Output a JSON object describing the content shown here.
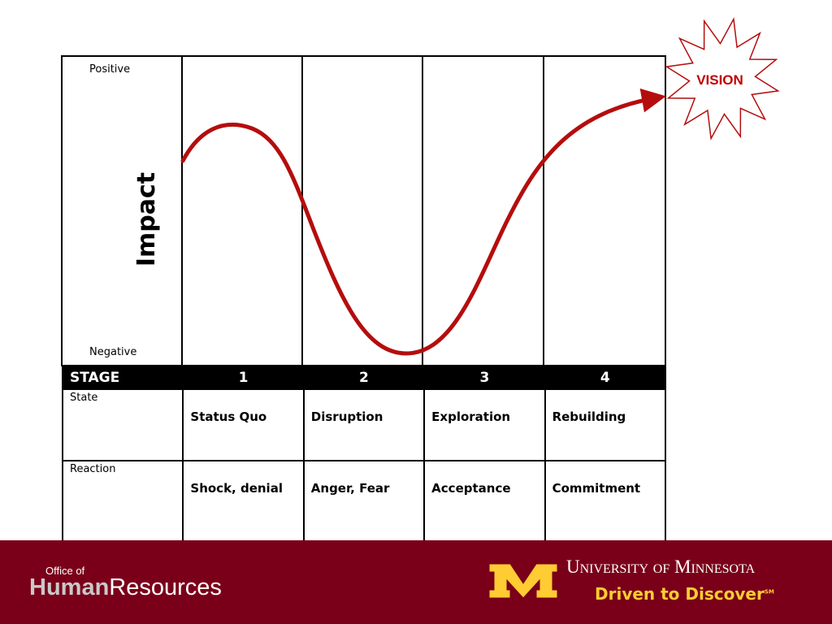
{
  "diagram": {
    "axis": {
      "top": "Positive",
      "bottom": "Negative",
      "label": "Impact"
    },
    "vision": "VISION",
    "table": {
      "header": [
        "STAGE",
        "1",
        "2",
        "3",
        "4"
      ],
      "rows": [
        [
          "State",
          "Status Quo",
          "Disruption",
          "Exploration",
          "Rebuilding"
        ],
        [
          "Reaction",
          "Shock, denial",
          "Anger, Fear",
          "Acceptance",
          "Commitment"
        ]
      ]
    }
  },
  "footer": {
    "office": "Office of",
    "human": "Human",
    "resources": "Resources",
    "university": "University of Minnesota",
    "tagline": "Driven to Discover",
    "mark": "SM"
  }
}
